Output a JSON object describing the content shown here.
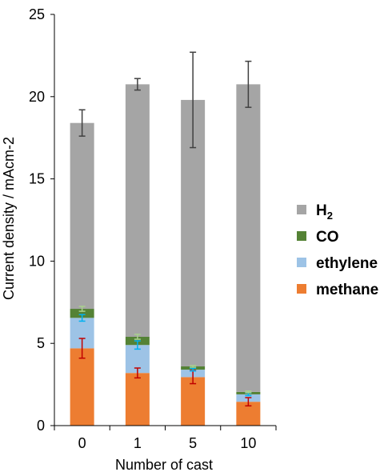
{
  "chart_data": {
    "type": "bar",
    "stacked": true,
    "categories": [
      "0",
      "1",
      "5",
      "10"
    ],
    "xlabel": "Number of cast",
    "ylabel": "Current density / mAcm-2",
    "ylim": [
      0,
      25
    ],
    "yticks": [
      "0",
      "5",
      "10",
      "15",
      "20",
      "25"
    ],
    "grid": false,
    "legend_position": "right",
    "series": [
      {
        "name": "methane",
        "color": "#ed7d31",
        "error_color": "#c00000",
        "values": [
          4.7,
          3.2,
          2.95,
          1.45
        ],
        "errors": [
          0.6,
          0.3,
          0.4,
          0.25
        ]
      },
      {
        "name": "ethylene",
        "color": "#9dc3e6",
        "error_color": "#00b0f0",
        "values": [
          1.85,
          1.7,
          0.45,
          0.45
        ],
        "errors": [
          0.2,
          0.25,
          0.08,
          0.08
        ]
      },
      {
        "name": "CO",
        "color": "#548235",
        "error_color": "#a9d18e",
        "values": [
          0.55,
          0.5,
          0.2,
          0.15
        ],
        "errors": [
          0.15,
          0.15,
          0.05,
          0.05
        ]
      },
      {
        "name": "H",
        "name_subscript": "2",
        "color": "#a5a5a5",
        "error_color": "#404040",
        "values": [
          11.3,
          15.35,
          16.2,
          18.7
        ],
        "errors": [
          0.8,
          0.35,
          2.9,
          1.4
        ]
      }
    ]
  }
}
